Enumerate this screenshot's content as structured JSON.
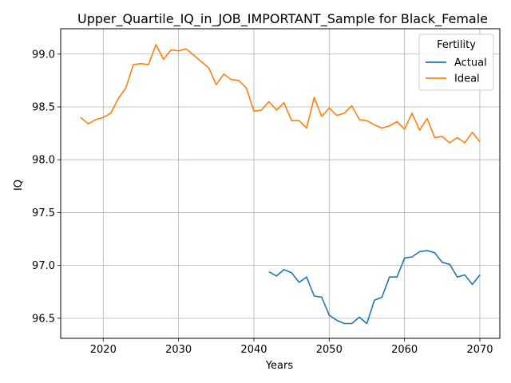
{
  "chart_data": {
    "type": "line",
    "title": "Upper_Quartile_IQ_in_JOB_IMPORTANT_Sample for Black_Female",
    "xlabel": "Years",
    "ylabel": "IQ",
    "xlim": [
      2014.35,
      2072.65
    ],
    "ylim": [
      96.31,
      99.24
    ],
    "xticks": [
      2020,
      2030,
      2040,
      2050,
      2060,
      2070
    ],
    "yticks": [
      96.5,
      97.0,
      97.5,
      98.0,
      98.5,
      99.0
    ],
    "xtick_labels": [
      "2020",
      "2030",
      "2040",
      "2050",
      "2060",
      "2070"
    ],
    "ytick_labels": [
      "96.5",
      "97.0",
      "97.5",
      "98.0",
      "98.5",
      "99.0"
    ],
    "grid": true,
    "legend": {
      "title": "Fertility",
      "position": "top-right"
    },
    "series": [
      {
        "name": "Actual",
        "color": "#1f77b4",
        "x": [
          2042,
          2043,
          2044,
          2045,
          2046,
          2047,
          2048,
          2049,
          2050,
          2051,
          2052,
          2053,
          2054,
          2055,
          2056,
          2057,
          2058,
          2059,
          2060,
          2061,
          2062,
          2063,
          2064,
          2065,
          2066,
          2067,
          2068,
          2069,
          2070
        ],
        "y": [
          96.94,
          96.9,
          96.96,
          96.93,
          96.84,
          96.89,
          96.71,
          96.7,
          96.53,
          96.48,
          96.45,
          96.45,
          96.51,
          96.45,
          96.67,
          96.7,
          96.89,
          96.89,
          97.07,
          97.08,
          97.13,
          97.14,
          97.12,
          97.03,
          97.01,
          96.89,
          96.91,
          96.82,
          96.91
        ]
      },
      {
        "name": "Ideal",
        "color": "#ff7f0e",
        "x": [
          2017,
          2018,
          2019,
          2020,
          2021,
          2022,
          2023,
          2024,
          2025,
          2026,
          2027,
          2028,
          2029,
          2030,
          2031,
          2032,
          2033,
          2034,
          2035,
          2036,
          2037,
          2038,
          2039,
          2040,
          2041,
          2042,
          2043,
          2044,
          2045,
          2046,
          2047,
          2048,
          2049,
          2050,
          2051,
          2052,
          2053,
          2054,
          2055,
          2056,
          2057,
          2058,
          2059,
          2060,
          2061,
          2062,
          2063,
          2064,
          2065,
          2066,
          2067,
          2068,
          2069,
          2070
        ],
        "y": [
          98.4,
          98.34,
          98.38,
          98.4,
          98.44,
          98.58,
          98.68,
          98.9,
          98.91,
          98.9,
          99.09,
          98.95,
          99.04,
          99.03,
          99.05,
          98.99,
          98.93,
          98.87,
          98.71,
          98.81,
          98.76,
          98.75,
          98.68,
          98.46,
          98.47,
          98.55,
          98.47,
          98.54,
          98.37,
          98.37,
          98.3,
          98.59,
          98.41,
          98.49,
          98.42,
          98.44,
          98.51,
          98.38,
          98.37,
          98.33,
          98.3,
          98.32,
          98.36,
          98.29,
          98.44,
          98.28,
          98.39,
          98.21,
          98.22,
          98.16,
          98.21,
          98.16,
          98.26,
          98.17
        ]
      }
    ]
  }
}
